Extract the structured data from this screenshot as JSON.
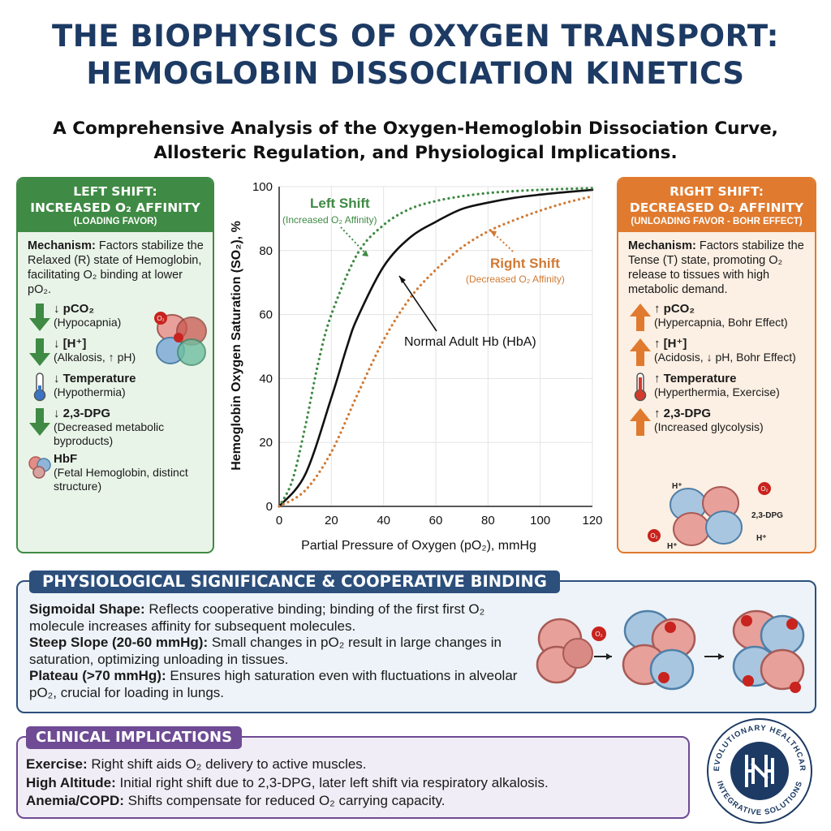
{
  "header": {
    "title_line1": "THE BIOPHYSICS OF OXYGEN TRANSPORT:",
    "title_line2": "HEMOGLOBIN DISSOCIATION KINETICS",
    "subtitle_line1": "A Comprehensive Analysis of the Oxygen-Hemoglobin Dissociation Curve,",
    "subtitle_line2": "Allosteric Regulation, and Physiological Implications."
  },
  "left_panel": {
    "heading1": "LEFT SHIFT:",
    "heading2": "INCREASED O₂ AFFINITY",
    "heading3": "(LOADING FAVOR)",
    "mechanism_label": "Mechanism:",
    "mechanism_text": " Factors stabilize the Relaxed (R) state of Hemoglobin, facilitating O₂ binding at lower pO₂.",
    "factors": [
      {
        "icon": "arrow-down-icon",
        "name": "↓ pCO₂",
        "desc": "(Hypocapnia)"
      },
      {
        "icon": "arrow-down-icon",
        "name": "↓ [H⁺]",
        "desc": "(Alkalosis, ↑ pH)"
      },
      {
        "icon": "thermometer-cold-icon",
        "name": "↓ Temperature",
        "desc": "(Hypothermia)"
      },
      {
        "icon": "arrow-down-icon",
        "name": "↓ 2,3-DPG",
        "desc": "(Decreased metabolic byproducts)"
      },
      {
        "icon": "hemoglobin-icon",
        "name": "HbF",
        "desc": "(Fetal Hemoglobin, distinct structure)"
      }
    ],
    "molecule_label": "O₂"
  },
  "right_panel": {
    "heading1": "RIGHT SHIFT:",
    "heading2": "DECREASED O₂ AFFINITY",
    "heading3": "(UNLOADING FAVOR - BOHR EFFECT)",
    "mechanism_label": "Mechanism:",
    "mechanism_text": " Factors stabilize the Tense (T) state, promoting O₂ release to tissues with high metabolic demand.",
    "factors": [
      {
        "icon": "arrow-up-icon",
        "name": "↑ pCO₂",
        "desc": "(Hypercapnia, Bohr Effect)"
      },
      {
        "icon": "arrow-up-icon",
        "name": "↑ [H⁺]",
        "desc": "(Acidosis, ↓ pH, Bohr Effect)"
      },
      {
        "icon": "thermometer-hot-icon",
        "name": "↑ Temperature",
        "desc": "(Hyperthermia, Exercise)"
      },
      {
        "icon": "arrow-up-icon",
        "name": "↑ 2,3-DPG",
        "desc": "(Increased glycolysis)"
      }
    ],
    "molecule_labels": {
      "h1": "H⁺",
      "h2": "H⁺",
      "h3": "H⁺",
      "o2a": "O₂",
      "o2b": "O₂",
      "dpg": "2,3-DPG"
    }
  },
  "chart_data": {
    "type": "line",
    "xlabel": "Partial Pressure of Oxygen (pO₂), mmHg",
    "ylabel": "Hemoglobin Oxygen Saturation (SO₂), %",
    "xlim": [
      0,
      120
    ],
    "ylim": [
      0,
      100
    ],
    "xticks": [
      0,
      20,
      40,
      60,
      80,
      100,
      120
    ],
    "yticks": [
      0,
      20,
      40,
      60,
      80,
      100
    ],
    "grid": true,
    "series": [
      {
        "name": "Normal Adult Hb (HbA)",
        "style": "solid",
        "color": "#111111",
        "x": [
          0,
          10,
          20,
          26,
          30,
          40,
          50,
          60,
          70,
          80,
          90,
          100,
          110,
          120
        ],
        "y": [
          0,
          10,
          34,
          50,
          59,
          75,
          84,
          89,
          93,
          95,
          96.5,
          97.5,
          98.3,
          99
        ]
      },
      {
        "name": "Left Shift",
        "style": "dotted",
        "color": "#3f8a44",
        "x": [
          0,
          5,
          10,
          15,
          20,
          30,
          40,
          50,
          60,
          70,
          80,
          90,
          100,
          110,
          120
        ],
        "y": [
          0,
          8,
          25,
          45,
          60,
          79,
          88,
          93,
          95.5,
          97,
          98,
          98.6,
          99,
          99.3,
          99.5
        ]
      },
      {
        "name": "Right Shift",
        "style": "dotted",
        "color": "#d07a35",
        "x": [
          0,
          10,
          20,
          30,
          40,
          50,
          60,
          70,
          80,
          90,
          100,
          110,
          120
        ],
        "y": [
          0,
          5,
          17,
          35,
          52,
          65,
          74,
          81,
          86,
          89.5,
          92.5,
          95,
          97
        ]
      }
    ],
    "annotations": {
      "left_title": "Left Shift",
      "left_sub": "(Increased O₂ Affinity)",
      "right_title": "Right Shift",
      "right_sub": "(Decreased O₂ Affinity)",
      "normal": "Normal Adult Hb (HbA)"
    }
  },
  "significance": {
    "heading": "PHYSIOLOGICAL SIGNIFICANCE & COOPERATIVE BINDING",
    "items": [
      {
        "label": "Sigmoidal Shape:",
        "text": " Reflects cooperative binding; binding of the first first O₂ molecule increases affinity for subsequent molecules."
      },
      {
        "label": "Steep Slope (20-60 mmHg):",
        "text": " Small changes in pO₂ result in large changes in saturation, optimizing unloading in tissues."
      },
      {
        "label": "Plateau (>70 mmHg):",
        "text": " Ensures high saturation even with fluctuations in alveolar pO₂, crucial for loading in lungs."
      }
    ],
    "o2_label": "O₂"
  },
  "clinical": {
    "heading": "CLINICAL IMPLICATIONS",
    "items": [
      {
        "label": "Exercise:",
        "text": " Right shift aids O₂ delivery to active muscles."
      },
      {
        "label": "High Altitude:",
        "text": " Initial right shift due to 2,3-DPG, later left shift via respiratory alkalosis."
      },
      {
        "label": "Anemia/COPD:",
        "text": " Shifts compensate for reduced O₂ carrying capacity."
      }
    ]
  },
  "logo": {
    "ring_top": "REVOLUTIONARY HEALTHCARE",
    "ring_bottom": "INTEGRATIVE SOLUTIONS"
  },
  "colors": {
    "title": "#1c3a63",
    "left_accent": "#3f8a44",
    "right_accent": "#e07a2e",
    "significance": "#2c4f7c",
    "clinical": "#6e4b94"
  }
}
